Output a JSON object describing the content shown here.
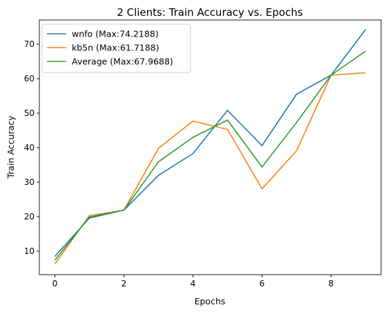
{
  "chart_data": {
    "type": "line",
    "title": "2 Clients: Train Accuracy vs. Epochs",
    "xlabel": "Epochs",
    "ylabel": "Train Accuracy",
    "x": [
      0,
      1,
      2,
      3,
      4,
      5,
      6,
      7,
      8,
      9
    ],
    "xlim": [
      -0.45,
      9.45
    ],
    "ylim": [
      3.2,
      77.0
    ],
    "xticks": [
      0,
      2,
      4,
      6,
      8
    ],
    "yticks": [
      10,
      20,
      30,
      40,
      50,
      60,
      70
    ],
    "grid": false,
    "legend_position": "top-left",
    "series": [
      {
        "name": "wnfo (Max:74.2188)",
        "color": "#1f77b4",
        "values": [
          8.5,
          19.6,
          21.9,
          32.0,
          38.3,
          50.8,
          40.6,
          55.5,
          61.0,
          74.2188
        ]
      },
      {
        "name": "kb5n (Max:61.7188)",
        "color": "#ff7f0e",
        "values": [
          6.3,
          20.3,
          21.9,
          39.8,
          47.7,
          45.3,
          28.1,
          39.1,
          61.0,
          61.7188
        ]
      },
      {
        "name": "Average (Max:67.9688)",
        "color": "#2ca02c",
        "values": [
          7.4,
          19.9,
          21.9,
          35.9,
          43.0,
          48.0,
          34.4,
          47.3,
          61.0,
          67.9688
        ]
      }
    ]
  }
}
